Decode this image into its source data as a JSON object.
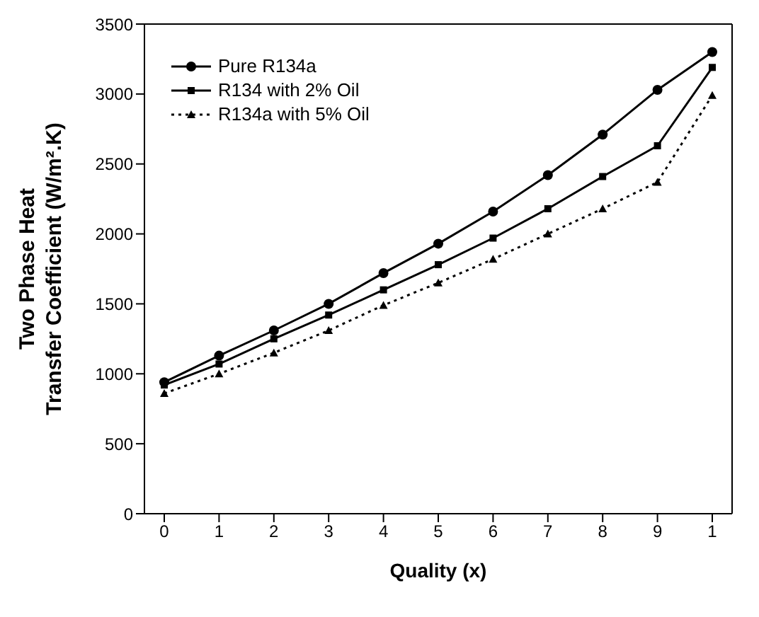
{
  "chart_data": {
    "type": "line",
    "xlabel": "Quality (x)",
    "ylabel": "Two Phase Heat Transfer Coefficient (W/m².K)",
    "categories": [
      "0",
      "1",
      "2",
      "3",
      "4",
      "5",
      "6",
      "7",
      "8",
      "9",
      "1"
    ],
    "series": [
      {
        "name": "Pure R134a",
        "color": "#000000",
        "marker": "circle",
        "line_style": "solid",
        "values": [
          940,
          1130,
          1310,
          1500,
          1720,
          1930,
          2160,
          2420,
          2710,
          3030,
          3300
        ]
      },
      {
        "name": "R134 with 2% Oil",
        "color": "#000000",
        "marker": "square",
        "line_style": "solid",
        "values": [
          920,
          1070,
          1250,
          1420,
          1600,
          1780,
          1970,
          2180,
          2410,
          2630,
          3190
        ]
      },
      {
        "name": "R134a with 5% Oil",
        "color": "#000000",
        "marker": "triangle",
        "line_style": "dotted",
        "values": [
          860,
          1000,
          1150,
          1310,
          1490,
          1650,
          1820,
          2000,
          2180,
          2370,
          2990
        ]
      }
    ],
    "ylim": [
      0,
      3500
    ],
    "yticks": [
      0,
      500,
      1000,
      1500,
      2000,
      2500,
      3000,
      3500
    ],
    "grid": false,
    "legend": "top left"
  }
}
